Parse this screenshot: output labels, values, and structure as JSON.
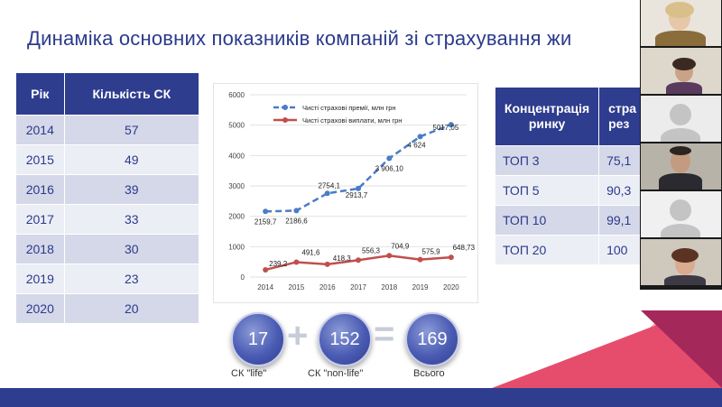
{
  "title": "Динаміка основних показників компаній зі страхування жи",
  "years_table": {
    "headers": [
      "Рік",
      "Кількість СК"
    ],
    "rows": [
      [
        "2014",
        "57"
      ],
      [
        "2015",
        "49"
      ],
      [
        "2016",
        "39"
      ],
      [
        "2017",
        "33"
      ],
      [
        "2018",
        "30"
      ],
      [
        "2019",
        "23"
      ],
      [
        "2020",
        "20"
      ]
    ]
  },
  "concentration_table": {
    "headers": [
      "Концентрація ринку",
      "стра рез"
    ],
    "rows": [
      [
        "ТОП 3",
        "75,1"
      ],
      [
        "ТОП 5",
        "90,3"
      ],
      [
        "ТОП 10",
        "99,1"
      ],
      [
        "ТОП 20",
        "100"
      ]
    ]
  },
  "chart_data": {
    "type": "line",
    "x": [
      "2014",
      "2015",
      "2016",
      "2017",
      "2018",
      "2019",
      "2020"
    ],
    "ylim": [
      0,
      6000
    ],
    "yticks": [
      "0",
      "1000",
      "2000",
      "3000",
      "4000",
      "5000",
      "6000"
    ],
    "grid": true,
    "legend_position": "top-left",
    "series": [
      {
        "name": "Чисті страхові премії, млн грн",
        "color": "#4a7cc7",
        "dashed": true,
        "values": [
          2159.7,
          2186.6,
          2754.1,
          2913.7,
          3906.1,
          4624,
          5017.05
        ],
        "labels": [
          "2159,7",
          "2186,6",
          "2754,1",
          "2913,7",
          "3 906,10",
          "4 624",
          "5017,05"
        ]
      },
      {
        "name": "Чисті страхові виплати, млн грн",
        "color": "#c0504d",
        "dashed": false,
        "values": [
          239.2,
          491.6,
          418.3,
          556.3,
          704.9,
          575.9,
          648.73
        ],
        "labels": [
          "239,2",
          "491,6",
          "418,3",
          "556,3",
          "704,9",
          "575,9",
          "648,73"
        ]
      }
    ]
  },
  "summary": {
    "life_value": "17",
    "nonlife_value": "152",
    "total_value": "169",
    "life_caption": "СК \"life\"",
    "nonlife_caption": "СК \"non-life\"",
    "total_caption": "Всього",
    "plus": "+",
    "equals": "="
  },
  "colors": {
    "brand_blue": "#2f3d8f",
    "row_light": "#d5d8e8",
    "row_lighter": "#eceef5",
    "accent_pink": "#e64d6d"
  }
}
